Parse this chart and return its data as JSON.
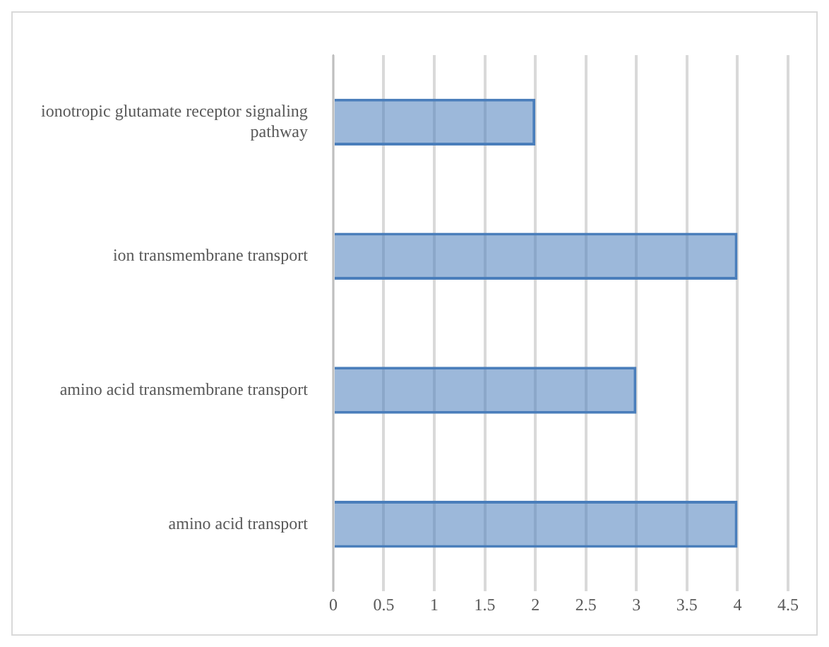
{
  "chart_data": {
    "type": "bar",
    "orientation": "horizontal",
    "categories": [
      "ionotropic glutamate receptor signaling pathway",
      "ion transmembrane transport",
      "amino acid transmembrane transport",
      "amino acid transport"
    ],
    "values": [
      2,
      4,
      3,
      4
    ],
    "color": "#4a7ebb",
    "xlim": [
      0,
      4.5
    ],
    "xticks": [
      0,
      0.5,
      1,
      1.5,
      2,
      2.5,
      3,
      3.5,
      4,
      4.5
    ],
    "grid": "x",
    "legend": false
  }
}
